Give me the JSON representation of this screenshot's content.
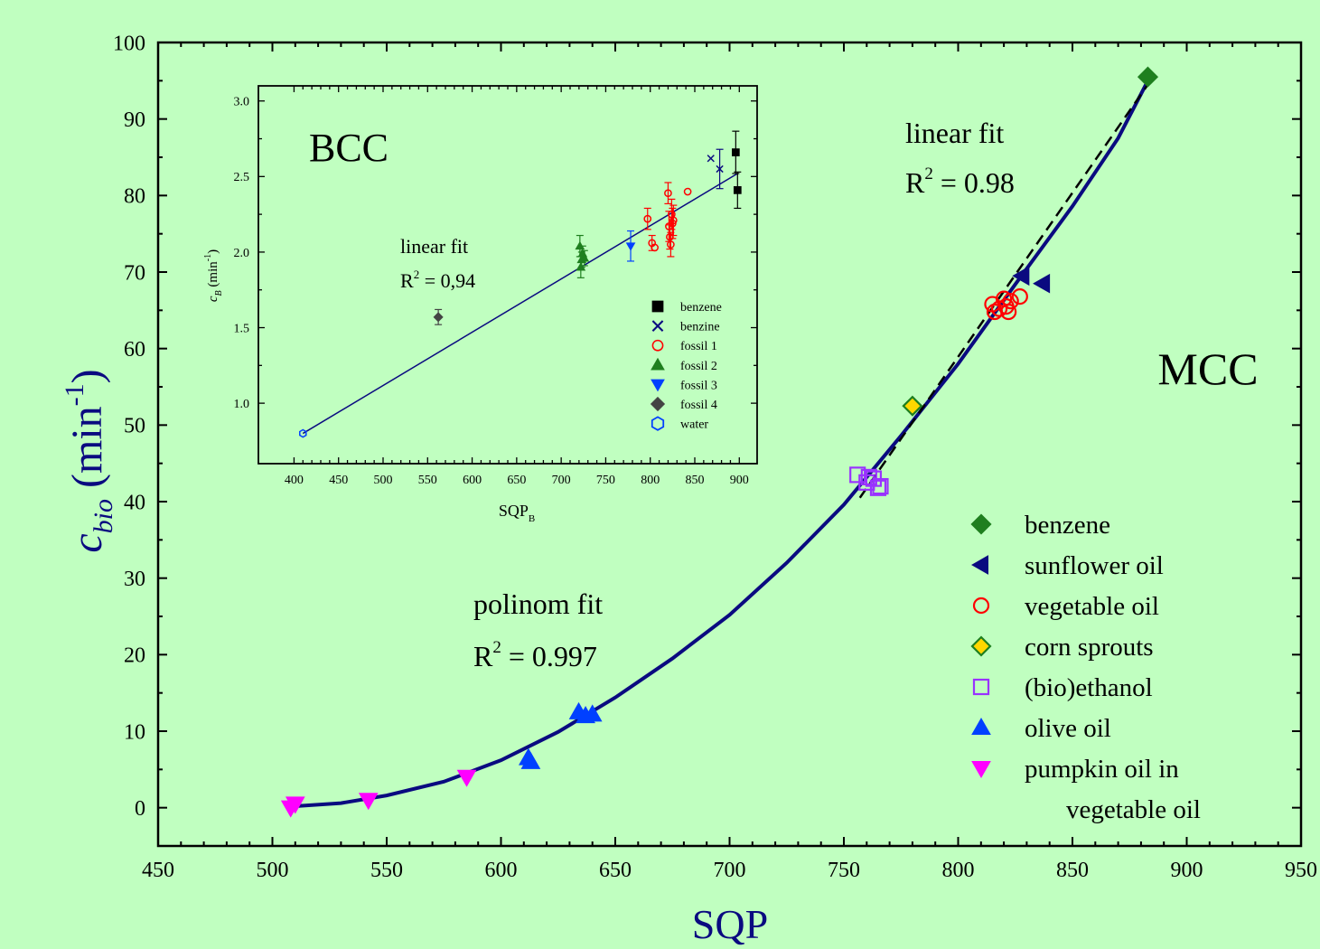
{
  "chart_data": [
    {
      "type": "scatter",
      "panel": "main",
      "title": "",
      "xlabel": "SQP",
      "ylabel_main": "c",
      "ylabel_sub": "bio",
      "ylabel_unit_open": "(min",
      "ylabel_unit_sup": "-1",
      "ylabel_unit_close": ")",
      "xlim": [
        450,
        950
      ],
      "ylim": [
        -5,
        100
      ],
      "x_ticks": [
        450,
        500,
        550,
        600,
        650,
        700,
        750,
        800,
        850,
        900,
        950
      ],
      "y_ticks": [
        0,
        10,
        20,
        30,
        40,
        50,
        60,
        70,
        80,
        90,
        100
      ],
      "x_tick_labels": [
        "450",
        "500",
        "550",
        "600",
        "650",
        "700",
        "750",
        "800",
        "850",
        "900",
        "950"
      ],
      "y_tick_labels": [
        "0",
        "10",
        "20",
        "30",
        "40",
        "50",
        "60",
        "70",
        "80",
        "90",
        "100"
      ],
      "panel_label": "MCC",
      "annotations": {
        "linear_fit_label": "linear fit",
        "linear_fit_r": "R",
        "linear_fit_sup": "2",
        "linear_fit_value": " = 0.98",
        "poly_fit_label": "polinom fit",
        "poly_fit_r": "R",
        "poly_fit_sup": "2",
        "poly_fit_value": " = 0.997"
      },
      "series": [
        {
          "name": "benzene",
          "marker": "diamond",
          "color": "#1f7f1f",
          "filled": true,
          "points": [
            [
              883,
              95.5
            ]
          ]
        },
        {
          "name": "sunflower oil",
          "marker": "triangle-left",
          "color": "#0a0a80",
          "filled": true,
          "points": [
            [
              828,
              69.5
            ],
            [
              837,
              68.5
            ]
          ]
        },
        {
          "name": "vegetable oil",
          "marker": "circle",
          "color": "#ff0000",
          "filled": false,
          "points": [
            [
              815,
              65.8
            ],
            [
              818,
              65.2
            ],
            [
              820,
              66.5
            ],
            [
              822,
              64.8
            ],
            [
              823,
              66.2
            ],
            [
              827,
              66.8
            ],
            [
              816,
              64.8
            ],
            [
              821,
              65.5
            ]
          ]
        },
        {
          "name": "corn sprouts",
          "marker": "diamond",
          "color": "#1f7f1f",
          "fill": "#ffd700",
          "filled": true,
          "points": [
            [
              780,
              52.5
            ]
          ]
        },
        {
          "name": "(bio)ethanol",
          "marker": "square",
          "color": "#9933ff",
          "filled": false,
          "points": [
            [
              756,
              43.5
            ],
            [
              760,
              42.5
            ],
            [
              763,
              43
            ],
            [
              766,
              42
            ],
            [
              761,
              43.2
            ],
            [
              765,
              41.8
            ]
          ]
        },
        {
          "name": "olive oil",
          "marker": "triangle-up",
          "color": "#0040ff",
          "filled": true,
          "points": [
            [
              612,
              6.5
            ],
            [
              613,
              6
            ],
            [
              634,
              12.5
            ],
            [
              637,
              12
            ],
            [
              640,
              12.2
            ]
          ]
        },
        {
          "name": "pumpkin oil in\n vegetable oil",
          "legend_line1": "pumpkin oil in",
          "legend_line2": "vegetable oil",
          "marker": "triangle-down",
          "color": "#ff00ff",
          "filled": true,
          "points": [
            [
              508,
              0
            ],
            [
              510,
              0.5
            ],
            [
              542,
              1
            ],
            [
              585,
              4
            ]
          ]
        }
      ],
      "linear_fit": {
        "from": [
          757,
          40.5
        ],
        "to": [
          883,
          94.5
        ]
      },
      "poly_fit": [
        [
          510,
          0.2
        ],
        [
          530,
          0.6
        ],
        [
          550,
          1.6
        ],
        [
          575,
          3.4
        ],
        [
          600,
          6.2
        ],
        [
          625,
          9.9
        ],
        [
          650,
          14.4
        ],
        [
          675,
          19.5
        ],
        [
          700,
          25.2
        ],
        [
          725,
          32.0
        ],
        [
          750,
          39.6
        ],
        [
          775,
          48.6
        ],
        [
          800,
          58.0
        ],
        [
          825,
          68.4
        ],
        [
          850,
          78.6
        ],
        [
          870,
          87.5
        ],
        [
          883,
          95.0
        ]
      ]
    },
    {
      "type": "scatter",
      "panel": "inset",
      "title": "",
      "xlabel": "SQP",
      "xlabel_sub": "B",
      "ylabel": "c",
      "ylabel_sub": "B",
      "ylabel_unit": "(min",
      "ylabel_unit_sup": "-1",
      "ylabel_unit_close": ")",
      "xlim": [
        360,
        920
      ],
      "ylim": [
        0.6,
        3.1
      ],
      "x_ticks": [
        400,
        450,
        500,
        550,
        600,
        650,
        700,
        750,
        800,
        850,
        900
      ],
      "y_ticks": [
        1.0,
        1.5,
        2.0,
        2.5,
        3.0
      ],
      "x_tick_labels": [
        "400",
        "450",
        "500",
        "550",
        "600",
        "650",
        "700",
        "750",
        "800",
        "850",
        "900"
      ],
      "y_tick_labels": [
        "1.0",
        "1.5",
        "2.0",
        "2.5",
        "3.0"
      ],
      "panel_label": "BCC",
      "annotations": {
        "fit_label": "linear fit",
        "fit_r": "R",
        "fit_sup": "2",
        "fit_value": " = 0,94"
      },
      "series": [
        {
          "name": "benzene",
          "marker": "square",
          "color": "#000000",
          "filled": true,
          "points": [
            [
              896,
              2.66,
              0.14
            ],
            [
              898,
              2.41,
              0.12
            ]
          ]
        },
        {
          "name": "benzine",
          "marker": "x",
          "color": "#0a0a80",
          "filled": false,
          "points": [
            [
              868,
              2.62,
              0
            ],
            [
              878,
              2.55,
              0.13
            ]
          ]
        },
        {
          "name": "fossil 1",
          "marker": "circle",
          "color": "#ff0000",
          "filled": false,
          "points": [
            [
              797,
              2.22,
              0.07
            ],
            [
              802,
              2.06,
              0.05
            ],
            [
              805,
              2.03,
              0
            ],
            [
              820,
              2.39,
              0.07
            ],
            [
              821,
              2.17,
              0.1
            ],
            [
              822,
              2.1,
              0.08
            ],
            [
              823,
              2.05,
              0.08
            ],
            [
              824,
              2.25,
              0.1
            ],
            [
              825,
              2.19,
              0.1
            ],
            [
              826,
              2.21,
              0.1
            ],
            [
              842,
              2.4,
              0
            ]
          ]
        },
        {
          "name": "fossil 2",
          "marker": "triangle-up",
          "color": "#1f7f1f",
          "filled": true,
          "points": [
            [
              721,
              2.04,
              0.07
            ],
            [
              722,
              1.9,
              0.07
            ],
            [
              723,
              1.95,
              0.05
            ],
            [
              724,
              1.99,
              0.05
            ],
            [
              726,
              1.96,
              0.05
            ]
          ]
        },
        {
          "name": "fossil 3",
          "marker": "triangle-down",
          "color": "#0040ff",
          "filled": true,
          "points": [
            [
              778,
              2.04,
              0.1
            ]
          ]
        },
        {
          "name": "fossil 4",
          "marker": "diamond",
          "color": "#444444",
          "filled": true,
          "points": [
            [
              562,
              1.57,
              0.05
            ]
          ]
        },
        {
          "name": "water",
          "marker": "hexagon",
          "color": "#0040ff",
          "filled": false,
          "points": [
            [
              410,
              0.8,
              0
            ]
          ]
        }
      ],
      "fit": {
        "from": [
          410,
          0.8
        ],
        "to": [
          898,
          2.52
        ]
      }
    }
  ]
}
